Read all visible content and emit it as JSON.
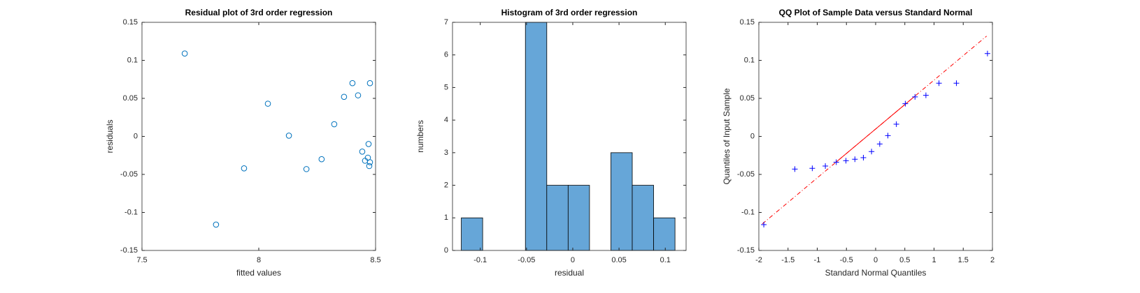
{
  "chart_data": [
    {
      "type": "scatter",
      "title": "Residual plot of 3rd order regression",
      "x_label": "fitted values",
      "y_label": "residuals",
      "marker": "o",
      "color": "#0072bd",
      "x": [
        7.683,
        7.817,
        7.937,
        8.039,
        8.129,
        8.204,
        8.269,
        8.323,
        8.365,
        8.401,
        8.425,
        8.476,
        8.47,
        8.443,
        8.455,
        8.467,
        8.476,
        8.473
      ],
      "values": [
        0.109,
        -0.116,
        -0.042,
        0.043,
        0.001,
        -0.043,
        -0.03,
        0.016,
        0.052,
        0.07,
        0.054,
        0.07,
        -0.01,
        -0.02,
        -0.032,
        -0.028,
        -0.034,
        -0.039
      ],
      "xlim": [
        7.5,
        8.5
      ],
      "xticks": [
        7.5,
        8,
        8.5
      ],
      "ylim": [
        -0.15,
        0.15
      ],
      "yticks": [
        -0.15,
        -0.1,
        -0.05,
        0,
        0.05,
        0.1,
        0.15
      ]
    },
    {
      "type": "histogram",
      "title": "Histogram of 3rd order regression",
      "x_label": "residual",
      "y_label": "numbers",
      "color": "#66a6d8",
      "bins": [
        -0.1205,
        -0.0974,
        -0.0743,
        -0.0512,
        -0.0281,
        -0.005,
        0.0181,
        0.0412,
        0.0643,
        0.0874,
        0.1105
      ],
      "values": [
        1,
        0,
        0,
        7,
        2,
        2,
        0,
        3,
        2,
        1
      ],
      "xlim": [
        -0.13,
        0.1225
      ],
      "xticks": [
        -0.1,
        -0.05,
        0,
        0.05,
        0.1
      ],
      "ylim": [
        0,
        7
      ],
      "yticks": [
        0,
        1,
        2,
        3,
        4,
        5,
        6,
        7
      ]
    },
    {
      "type": "scatter",
      "title": "QQ Plot of Sample Data versus Standard Normal",
      "x_label": "Standard Normal Quantiles",
      "y_label": "Quantiles of Input Sample",
      "marker": "+",
      "color": "#0000ff",
      "x": [
        -1.915,
        -1.383,
        -1.085,
        -0.861,
        -0.674,
        -0.508,
        -0.355,
        -0.21,
        -0.07,
        0.07,
        0.21,
        0.355,
        0.508,
        0.674,
        0.861,
        1.085,
        1.383,
        1.915
      ],
      "values": [
        -0.116,
        -0.043,
        -0.042,
        -0.039,
        -0.034,
        -0.032,
        -0.03,
        -0.028,
        -0.02,
        -0.01,
        0.001,
        0.016,
        0.043,
        0.052,
        0.054,
        0.07,
        0.07,
        0.109
      ],
      "reference_line": {
        "color": "#ff0000",
        "slope": 0.0643,
        "intercept": 0.0097,
        "solid_x": [
          -0.67,
          0.67
        ],
        "dash_x": [
          -1.94,
          1.9
        ]
      },
      "xlim": [
        -2,
        2
      ],
      "xticks": [
        -2,
        -1.5,
        -1,
        -0.5,
        0,
        0.5,
        1,
        1.5,
        2
      ],
      "ylim": [
        -0.15,
        0.15
      ],
      "yticks": [
        -0.15,
        -0.1,
        -0.05,
        0,
        0.05,
        0.1,
        0.15
      ]
    }
  ]
}
